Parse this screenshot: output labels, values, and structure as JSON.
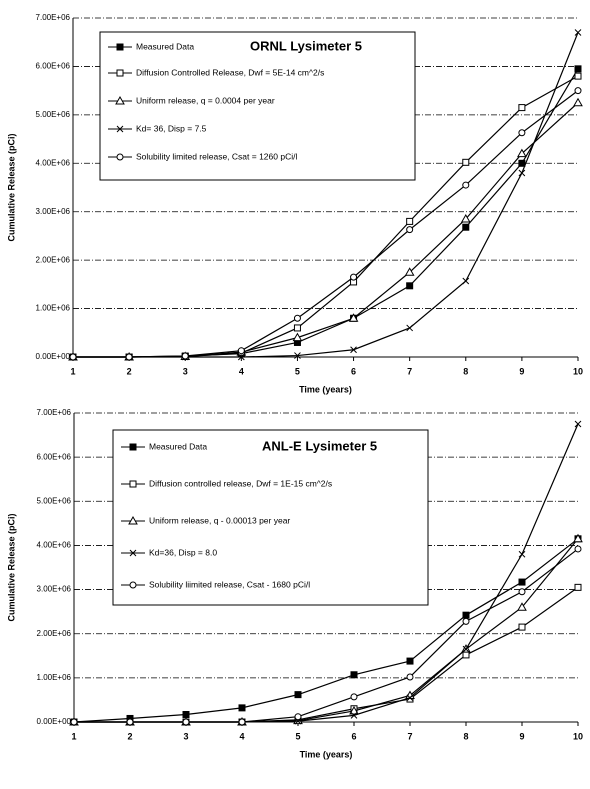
{
  "chart_data": [
    {
      "type": "line",
      "title": "ORNL Lysimeter 5",
      "x_label": "Time (years)",
      "y_label": "Cumulative Release (pCi)",
      "x": [
        1,
        2,
        3,
        4,
        5,
        6,
        7,
        8,
        9,
        10
      ],
      "xlim": [
        1,
        10
      ],
      "xticks": [
        1,
        2,
        3,
        4,
        5,
        6,
        7,
        8,
        9,
        10
      ],
      "ylim": [
        0,
        7000000
      ],
      "yticks": [
        {
          "value": 0,
          "label": "0.00E+00"
        },
        {
          "value": 1000000,
          "label": "1.00E+06"
        },
        {
          "value": 2000000,
          "label": "2.00E+06"
        },
        {
          "value": 3000000,
          "label": "3.00E+06"
        },
        {
          "value": 4000000,
          "label": "4.00E+06"
        },
        {
          "value": 5000000,
          "label": "5.00E+06"
        },
        {
          "value": 6000000,
          "label": "6.00E+06"
        },
        {
          "value": 7000000,
          "label": "7.00E+06"
        }
      ],
      "grid": true,
      "series": [
        {
          "name": "Measured Data",
          "color": "#000000",
          "marker": "square-filled",
          "values": [
            0,
            0,
            20000,
            70000,
            300000,
            800000,
            1470000,
            2680000,
            4000000,
            5950000
          ]
        },
        {
          "name": "Diffusion Controlled Release, Dwf = 5E-14 cm^2/s",
          "color": "#000000",
          "marker": "square-open",
          "values": [
            0,
            0,
            10000,
            80000,
            600000,
            1550000,
            2800000,
            4020000,
            5150000,
            5800000
          ]
        },
        {
          "name": "Uniform release, q = 0.0004 per year",
          "color": "#000000",
          "marker": "triangle-open",
          "values": [
            0,
            0,
            10000,
            100000,
            400000,
            800000,
            1750000,
            2850000,
            4200000,
            5250000
          ]
        },
        {
          "name": "Kd= 36, Disp = 7.5",
          "color": "#000000",
          "marker": "x",
          "values": [
            0,
            0,
            0,
            0,
            30000,
            150000,
            600000,
            1570000,
            3800000,
            6700000
          ]
        },
        {
          "name": "Solubility limited release, Csat = 1260 pCi/l",
          "color": "#000000",
          "marker": "circle-open",
          "values": [
            0,
            0,
            20000,
            130000,
            800000,
            1650000,
            2630000,
            3550000,
            4630000,
            5500000
          ]
        }
      ]
    },
    {
      "type": "line",
      "title": "ANL-E Lysimeter 5",
      "x_label": "Time (years)",
      "y_label": "Cumulative Release (pCi)",
      "x": [
        1,
        2,
        3,
        4,
        5,
        6,
        7,
        8,
        9,
        10
      ],
      "xlim": [
        1,
        10
      ],
      "xticks": [
        1,
        2,
        3,
        4,
        5,
        6,
        7,
        8,
        9,
        10
      ],
      "ylim": [
        0,
        7000000
      ],
      "yticks": [
        {
          "value": 0,
          "label": "0.00E+00"
        },
        {
          "value": 1000000,
          "label": "1.00E+06"
        },
        {
          "value": 2000000,
          "label": "2.00E+06"
        },
        {
          "value": 3000000,
          "label": "3.00E+06"
        },
        {
          "value": 4000000,
          "label": "4.00E+06"
        },
        {
          "value": 5000000,
          "label": "5.00E+06"
        },
        {
          "value": 6000000,
          "label": "6.00E+06"
        },
        {
          "value": 7000000,
          "label": "7.00E+06"
        }
      ],
      "grid": true,
      "series": [
        {
          "name": "Measured Data",
          "color": "#000000",
          "marker": "square-filled",
          "values": [
            0,
            80000,
            170000,
            320000,
            620000,
            1070000,
            1380000,
            2420000,
            3170000,
            4150000
          ]
        },
        {
          "name": "Diffusion controlled release, Dwf = 1E-15 cm^2/s",
          "color": "#000000",
          "marker": "square-open",
          "values": [
            0,
            0,
            0,
            0,
            50000,
            300000,
            520000,
            1520000,
            2150000,
            3050000
          ]
        },
        {
          "name": "Uniform release, q - 0.00013 per year",
          "color": "#000000",
          "marker": "triangle-open",
          "values": [
            0,
            0,
            0,
            0,
            30000,
            250000,
            600000,
            1650000,
            2600000,
            4150000
          ]
        },
        {
          "name": "Kd=36, Disp = 8.0",
          "color": "#000000",
          "marker": "x",
          "values": [
            0,
            0,
            0,
            0,
            20000,
            150000,
            550000,
            1650000,
            3800000,
            6750000
          ]
        },
        {
          "name": "Solubility liimited release, Csat - 1680 pCi/l",
          "color": "#000000",
          "marker": "circle-open",
          "values": [
            0,
            0,
            0,
            0,
            120000,
            570000,
            1020000,
            2280000,
            2950000,
            3920000
          ]
        }
      ]
    }
  ]
}
